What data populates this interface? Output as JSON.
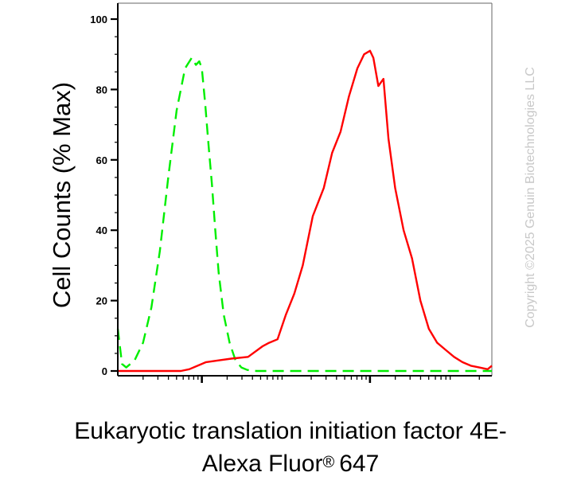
{
  "chart_data": {
    "type": "line",
    "title": "",
    "ylabel": "Cell Counts (% Max)",
    "xlabel_line1": "Eukaryotic translation initiation factor 4E-",
    "xlabel_line2_text": "Alexa Fluor",
    "xlabel_line2_mark": "®",
    "xlabel_line2_num": "647",
    "ylim": [
      0,
      100
    ],
    "yticks": [
      0,
      20,
      40,
      60,
      80,
      100
    ],
    "ytick_labels": [
      "0",
      "20",
      "40",
      "60",
      "80",
      "100"
    ],
    "x_scale": "log",
    "xlim": [
      0,
      4.45
    ],
    "x_major_ticks": [
      1,
      3,
      4.4
    ],
    "grid": false,
    "series": [
      {
        "color": "#00ee00",
        "dash": "dashed",
        "x": [
          0.0,
          0.05,
          0.1,
          0.2,
          0.3,
          0.4,
          0.5,
          0.6,
          0.7,
          0.8,
          0.88,
          0.93,
          0.97,
          1.0,
          1.04,
          1.08,
          1.12,
          1.16,
          1.2,
          1.26,
          1.33,
          1.4,
          1.47,
          1.54,
          1.6,
          1.65,
          1.7,
          1.8,
          2.0,
          2.5,
          3.0,
          3.5,
          4.0,
          4.45
        ],
        "y": [
          12,
          2,
          1,
          3,
          8,
          18,
          34,
          55,
          74,
          86,
          89,
          87,
          88,
          86,
          76,
          64,
          53,
          40,
          28,
          16,
          8,
          3,
          1,
          0.3,
          0.1,
          0,
          0,
          0,
          0,
          0,
          0,
          0,
          0,
          0
        ]
      },
      {
        "color": "#ff0000",
        "dash": "solid",
        "x": [
          0.0,
          0.5,
          0.75,
          0.85,
          0.95,
          1.05,
          1.2,
          1.35,
          1.55,
          1.72,
          1.8,
          1.9,
          2.0,
          2.1,
          2.2,
          2.32,
          2.45,
          2.55,
          2.65,
          2.75,
          2.85,
          2.93,
          3.0,
          3.04,
          3.1,
          3.16,
          3.22,
          3.3,
          3.4,
          3.5,
          3.6,
          3.7,
          3.8,
          3.9,
          4.0,
          4.1,
          4.2,
          4.3,
          4.4,
          4.45
        ],
        "y": [
          0,
          0,
          0,
          0.5,
          1.5,
          2.5,
          3,
          3.5,
          4,
          7,
          8,
          9,
          16,
          22,
          30,
          44,
          52,
          62,
          68,
          78,
          86,
          90,
          91,
          89,
          81,
          83,
          66,
          52,
          40,
          32,
          20,
          12,
          8,
          6,
          4,
          2.5,
          1.5,
          1,
          0.5,
          1.5
        ]
      }
    ]
  },
  "watermark": "Copyright ©2025 Genuin Biotechnologies LLC"
}
